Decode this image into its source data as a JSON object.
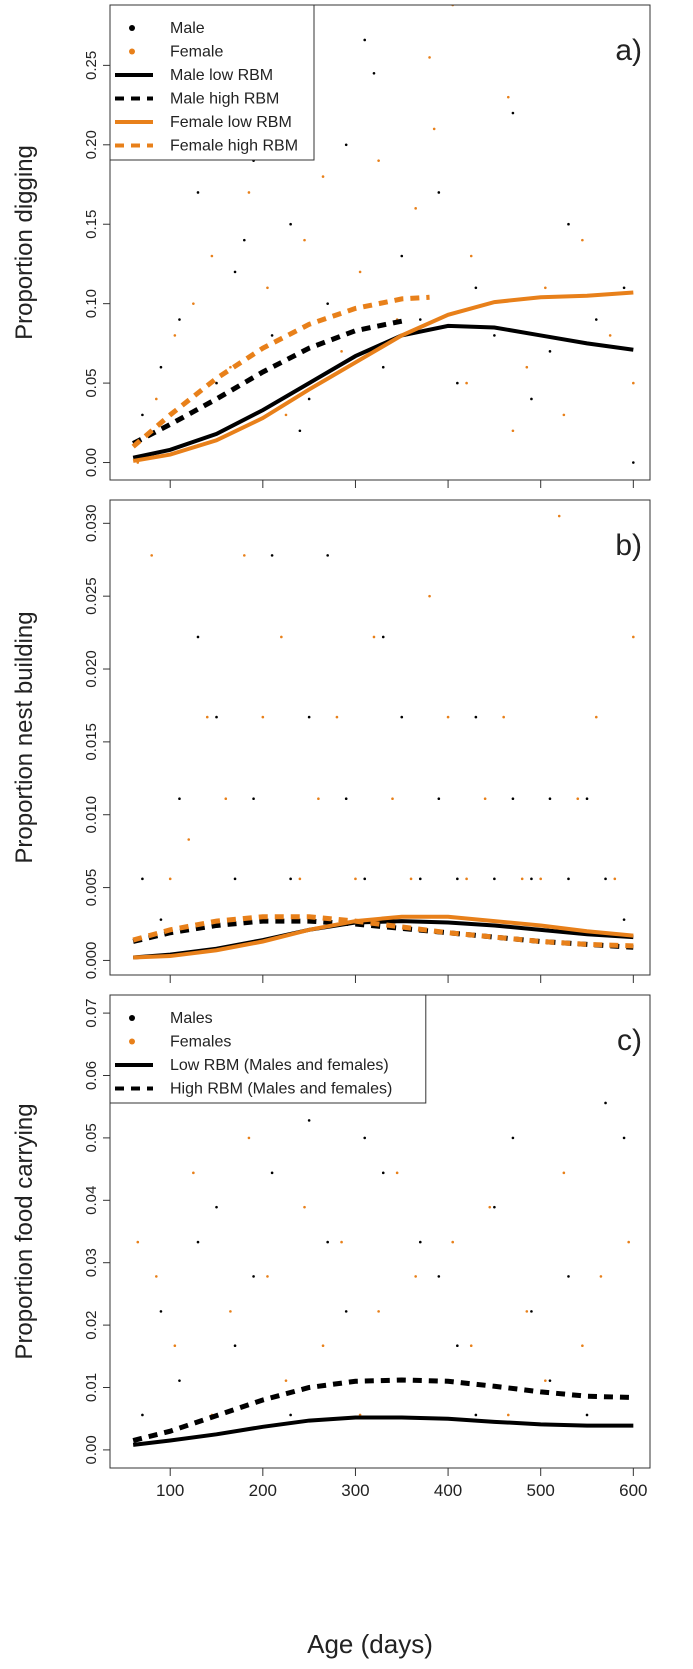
{
  "chart_data": [
    {
      "type": "scatter",
      "annotation": "a)",
      "ylabel": "Proportion digging",
      "xlim": [
        35,
        618
      ],
      "ylim": [
        -0.011,
        0.288
      ],
      "yticks": [
        {
          "value": 0,
          "label": "0.00"
        },
        0.05,
        {
          "value": 0.1,
          "label": "0.10"
        },
        0.15,
        {
          "value": 0.2,
          "label": "0.20"
        },
        0.25
      ],
      "legend": "top-left",
      "series": [
        {
          "name": "Male",
          "color": "#000000",
          "style": "points",
          "x": [
            70,
            90,
            110,
            130,
            150,
            170,
            190,
            210,
            230,
            250,
            270,
            290,
            310,
            330,
            350,
            370,
            390,
            410,
            430,
            450,
            470,
            490,
            510,
            530,
            560,
            590,
            600,
            320,
            240,
            180
          ],
          "values": [
            0.03,
            0.06,
            0.09,
            0.17,
            0.05,
            0.12,
            0.19,
            0.08,
            0.15,
            0.04,
            0.1,
            0.2,
            0.266,
            0.06,
            0.13,
            0.09,
            0.17,
            0.05,
            0.11,
            0.08,
            0.22,
            0.04,
            0.07,
            0.15,
            0.09,
            0.11,
            0.0,
            0.245,
            0.02,
            0.14
          ]
        },
        {
          "name": "Female",
          "color": "#e8801a",
          "style": "points",
          "x": [
            65,
            85,
            105,
            125,
            145,
            165,
            185,
            205,
            225,
            245,
            265,
            285,
            305,
            325,
            345,
            365,
            385,
            405,
            425,
            445,
            465,
            485,
            505,
            525,
            545,
            575,
            600,
            380,
            420,
            470
          ],
          "values": [
            0.0,
            0.04,
            0.08,
            0.1,
            0.13,
            0.06,
            0.17,
            0.11,
            0.03,
            0.14,
            0.18,
            0.07,
            0.12,
            0.19,
            0.09,
            0.16,
            0.21,
            0.288,
            0.13,
            0.1,
            0.23,
            0.06,
            0.11,
            0.03,
            0.14,
            0.08,
            0.05,
            0.255,
            0.05,
            0.02
          ]
        },
        {
          "name": "Male low RBM",
          "color": "#000000",
          "style": "solid",
          "x": [
            60,
            100,
            150,
            200,
            250,
            300,
            350,
            400,
            450,
            500,
            550,
            600
          ],
          "values": [
            0.003,
            0.008,
            0.018,
            0.033,
            0.05,
            0.067,
            0.08,
            0.086,
            0.085,
            0.08,
            0.075,
            0.071
          ]
        },
        {
          "name": "Male high RBM",
          "color": "#000000",
          "style": "dashed",
          "x": [
            60,
            100,
            150,
            200,
            250,
            300,
            350
          ],
          "values": [
            0.012,
            0.024,
            0.04,
            0.057,
            0.072,
            0.083,
            0.089
          ]
        },
        {
          "name": "Female low RBM",
          "color": "#e8801a",
          "style": "solid",
          "x": [
            60,
            100,
            150,
            200,
            250,
            300,
            350,
            400,
            450,
            500,
            550,
            600
          ],
          "values": [
            0.001,
            0.005,
            0.014,
            0.028,
            0.046,
            0.063,
            0.08,
            0.093,
            0.101,
            0.104,
            0.105,
            0.107
          ]
        },
        {
          "name": "Female high RBM",
          "color": "#e8801a",
          "style": "dashed",
          "x": [
            60,
            100,
            150,
            200,
            250,
            300,
            350,
            380
          ],
          "values": [
            0.01,
            0.03,
            0.053,
            0.072,
            0.087,
            0.097,
            0.103,
            0.104
          ]
        }
      ]
    },
    {
      "type": "scatter",
      "annotation": "b)",
      "ylabel": "Proportion nest building",
      "xlim": [
        35,
        618
      ],
      "ylim": [
        -0.001,
        0.0316
      ],
      "yticks": [
        {
          "value": 0,
          "label": "0.000"
        },
        0.005,
        {
          "value": 0.01,
          "label": "0.010"
        },
        0.015,
        {
          "value": 0.02,
          "label": "0.020"
        },
        0.025,
        {
          "value": 0.03,
          "label": "0.030"
        }
      ],
      "series": [
        {
          "color": "#000000",
          "style": "points",
          "x": [
            70,
            90,
            110,
            130,
            150,
            170,
            190,
            210,
            230,
            250,
            270,
            290,
            310,
            330,
            350,
            370,
            390,
            410,
            430,
            450,
            470,
            490,
            510,
            530,
            550,
            570,
            590
          ],
          "values": [
            0.0056,
            0.0028,
            0.0111,
            0.0222,
            0.0167,
            0.0056,
            0.0111,
            0.0278,
            0.0056,
            0.0167,
            0.0278,
            0.0111,
            0.0056,
            0.0222,
            0.0167,
            0.0056,
            0.0111,
            0.0056,
            0.0167,
            0.0056,
            0.0111,
            0.0056,
            0.0111,
            0.0056,
            0.0111,
            0.0056,
            0.0028
          ]
        },
        {
          "color": "#e8801a",
          "style": "points",
          "x": [
            80,
            100,
            120,
            140,
            160,
            180,
            200,
            220,
            240,
            260,
            280,
            300,
            320,
            340,
            360,
            380,
            400,
            420,
            440,
            460,
            480,
            500,
            520,
            540,
            560,
            580,
            600
          ],
          "values": [
            0.0278,
            0.0056,
            0.0083,
            0.0167,
            0.0111,
            0.0278,
            0.0167,
            0.0222,
            0.0056,
            0.0111,
            0.0167,
            0.0056,
            0.0222,
            0.0111,
            0.0056,
            0.025,
            0.0167,
            0.0056,
            0.0111,
            0.0167,
            0.0056,
            0.0056,
            0.0305,
            0.0111,
            0.0167,
            0.0056,
            0.0222
          ]
        },
        {
          "color": "#000000",
          "style": "solid",
          "x": [
            60,
            100,
            150,
            200,
            250,
            300,
            350,
            400,
            450,
            500,
            550,
            600
          ],
          "values": [
            0.0002,
            0.0004,
            0.0008,
            0.0014,
            0.0021,
            0.0026,
            0.0027,
            0.0026,
            0.0024,
            0.0021,
            0.0018,
            0.0016
          ]
        },
        {
          "color": "#000000",
          "style": "dashed",
          "x": [
            60,
            100,
            150,
            200,
            250,
            300,
            350,
            400,
            450,
            500,
            550,
            600
          ],
          "values": [
            0.0013,
            0.0019,
            0.0024,
            0.0027,
            0.0027,
            0.0025,
            0.0022,
            0.0019,
            0.0016,
            0.0013,
            0.0011,
            0.0009
          ]
        },
        {
          "color": "#e8801a",
          "style": "solid",
          "x": [
            60,
            100,
            150,
            200,
            250,
            300,
            350,
            400,
            450,
            500,
            550,
            600
          ],
          "values": [
            0.0002,
            0.0003,
            0.0007,
            0.0013,
            0.0021,
            0.0027,
            0.003,
            0.003,
            0.0027,
            0.0024,
            0.002,
            0.0017
          ]
        },
        {
          "color": "#e8801a",
          "style": "dashed",
          "x": [
            60,
            100,
            150,
            200,
            250,
            300,
            350,
            400,
            450,
            500,
            550,
            600
          ],
          "values": [
            0.0014,
            0.0021,
            0.0027,
            0.003,
            0.003,
            0.0027,
            0.0023,
            0.0019,
            0.0016,
            0.0013,
            0.0011,
            0.001
          ]
        }
      ]
    },
    {
      "type": "scatter",
      "annotation": "c)",
      "ylabel": "Proportion food carrying",
      "xlabel": "Age (days)",
      "xlim": [
        35,
        618
      ],
      "ylim": [
        -0.0029,
        0.0729
      ],
      "xticks": [
        100,
        200,
        300,
        400,
        500,
        600
      ],
      "yticks": [
        {
          "value": 0,
          "label": "0.00"
        },
        0.01,
        0.02,
        0.03,
        0.04,
        0.05,
        0.06,
        0.07
      ],
      "legend": "top-left",
      "series": [
        {
          "name": "Males",
          "color": "#000000",
          "style": "points",
          "x": [
            70,
            90,
            110,
            130,
            150,
            170,
            190,
            210,
            230,
            250,
            270,
            290,
            310,
            330,
            350,
            370,
            390,
            410,
            430,
            450,
            470,
            490,
            510,
            530,
            550,
            570,
            590
          ],
          "values": [
            0.0056,
            0.0222,
            0.0111,
            0.0333,
            0.0389,
            0.0167,
            0.0278,
            0.0444,
            0.0056,
            0.0528,
            0.0333,
            0.0222,
            0.05,
            0.0444,
            0.0111,
            0.0333,
            0.0278,
            0.0167,
            0.0056,
            0.0389,
            0.05,
            0.0222,
            0.0111,
            0.0278,
            0.0056,
            0.0556,
            0.05
          ]
        },
        {
          "name": "Females",
          "color": "#e8801a",
          "style": "points",
          "x": [
            65,
            85,
            105,
            125,
            145,
            165,
            185,
            205,
            225,
            245,
            265,
            285,
            305,
            325,
            345,
            365,
            385,
            405,
            425,
            445,
            465,
            485,
            505,
            525,
            545,
            565,
            595
          ],
          "values": [
            0.0333,
            0.0278,
            0.0167,
            0.0444,
            0.0056,
            0.0222,
            0.05,
            0.0278,
            0.0111,
            0.0389,
            0.0167,
            0.0333,
            0.0056,
            0.0222,
            0.0444,
            0.0278,
            0.0111,
            0.0333,
            0.0167,
            0.0389,
            0.0056,
            0.0222,
            0.0111,
            0.0444,
            0.0167,
            0.0278,
            0.0333
          ]
        },
        {
          "name": "Low RBM (Males and females)",
          "color": "#000000",
          "style": "solid",
          "x": [
            60,
            100,
            150,
            200,
            250,
            300,
            350,
            400,
            450,
            500,
            550,
            600
          ],
          "values": [
            0.0008,
            0.0015,
            0.0025,
            0.0037,
            0.0047,
            0.0052,
            0.0052,
            0.005,
            0.0045,
            0.0041,
            0.0039,
            0.0039
          ]
        },
        {
          "name": "High RBM (Males and females)",
          "color": "#000000",
          "style": "dashed",
          "x": [
            60,
            100,
            150,
            200,
            250,
            300,
            350,
            400,
            450,
            500,
            550,
            600
          ],
          "values": [
            0.0015,
            0.003,
            0.0055,
            0.008,
            0.01,
            0.011,
            0.0112,
            0.011,
            0.0102,
            0.0093,
            0.0086,
            0.0084
          ]
        }
      ]
    }
  ]
}
